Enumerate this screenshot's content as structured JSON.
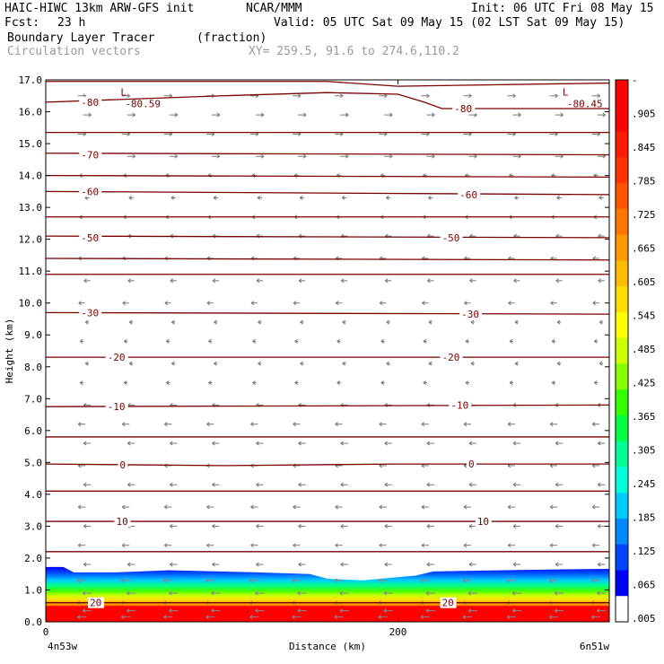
{
  "header": {
    "model": "HAIC-HIWC 13km ARW-GFS init",
    "org": "NCAR/MMM",
    "init": "Init: 06 UTC Fri 08 May 15",
    "fcst_label": "Fcst:",
    "fcst_value": "23 h",
    "valid": "Valid: 05 UTC Sat 09 May 15 (02 LST Sat 09 May 15)",
    "field_name": "Boundary Layer Tracer",
    "field_units": "(fraction)",
    "vector_label": "Circulation vectors",
    "xy_text": "XY= 259.5, 91.6 to 274.6,110.2"
  },
  "chart_data": {
    "type": "heatmap",
    "xlabel": "Distance (km)",
    "ylabel": "Height (km)",
    "xlim": [
      0,
      320
    ],
    "ylim": [
      0,
      17
    ],
    "x_ticks": [
      {
        "value": 0,
        "label": "0"
      },
      {
        "value": 200,
        "label": "200"
      }
    ],
    "y_ticks": [
      "0.0",
      "1.0",
      "2.0",
      "3.0",
      "4.0",
      "5.0",
      "6.0",
      "7.0",
      "8.0",
      "9.0",
      "10.0",
      "11.0",
      "12.0",
      "13.0",
      "14.0",
      "15.0",
      "16.0",
      "17.0"
    ],
    "x_end_labels": {
      "left": "4n53w",
      "right": "6n51w"
    },
    "colorbar": {
      "labels": [
        "-",
        ".905",
        ".845",
        ".785",
        ".725",
        ".665",
        ".605",
        ".545",
        ".485",
        ".425",
        ".365",
        ".305",
        ".245",
        ".185",
        ".125",
        ".065",
        ".005"
      ],
      "colors": [
        "#ff0000",
        "#ff0000",
        "#ff1a00",
        "#ff3300",
        "#ff5500",
        "#ff7700",
        "#ff9900",
        "#ffbb00",
        "#ffdd00",
        "#ffff00",
        "#ccff00",
        "#88ff00",
        "#33ff00",
        "#00ff44",
        "#00ff99",
        "#00ffdd",
        "#00ccff",
        "#0088ff",
        "#0044ff",
        "#0000ff",
        "#ffffff"
      ]
    },
    "tracer_top_km": [
      [
        0,
        1.72
      ],
      [
        10,
        1.72
      ],
      [
        16,
        1.55
      ],
      [
        40,
        1.55
      ],
      [
        70,
        1.62
      ],
      [
        120,
        1.55
      ],
      [
        150,
        1.5
      ],
      [
        160,
        1.35
      ],
      [
        180,
        1.3
      ],
      [
        210,
        1.45
      ],
      [
        220,
        1.58
      ],
      [
        260,
        1.62
      ],
      [
        300,
        1.65
      ],
      [
        320,
        1.66
      ]
    ],
    "tracer_bands_km": [
      {
        "level": ".005",
        "top_offset": 0.0
      },
      {
        "level": ".305",
        "top_offset": 0.25
      },
      {
        "level": ".545",
        "top_offset": 0.45
      },
      {
        "level": ".725",
        "top_offset": 0.6
      },
      {
        "level": ".905",
        "top_offset": 0.8
      }
    ],
    "isotherms": [
      {
        "label": "-80",
        "points": [
          [
            0,
            16.3
          ],
          [
            100,
            16.5
          ],
          [
            160,
            16.6
          ],
          [
            200,
            16.55
          ],
          [
            215,
            16.3
          ],
          [
            225,
            16.1
          ],
          [
            320,
            16.1
          ]
        ],
        "labels_at": [
          [
            20,
            16.3
          ],
          [
            232,
            16.1
          ]
        ]
      },
      {
        "label": "",
        "points": [
          [
            0,
            16.95
          ],
          [
            160,
            16.95
          ],
          [
            200,
            16.8
          ],
          [
            320,
            16.9
          ]
        ],
        "labels_at": []
      },
      {
        "label": "",
        "points": [
          [
            0,
            15.35
          ],
          [
            320,
            15.35
          ]
        ],
        "labels_at": []
      },
      {
        "label": "-70",
        "points": [
          [
            0,
            14.7
          ],
          [
            320,
            14.65
          ]
        ],
        "labels_at": [
          [
            20,
            14.65
          ]
        ]
      },
      {
        "label": "",
        "points": [
          [
            0,
            14.0
          ],
          [
            320,
            13.95
          ]
        ],
        "labels_at": []
      },
      {
        "label": "-60",
        "points": [
          [
            0,
            13.5
          ],
          [
            320,
            13.4
          ]
        ],
        "labels_at": [
          [
            20,
            13.5
          ],
          [
            235,
            13.4
          ]
        ]
      },
      {
        "label": "",
        "points": [
          [
            0,
            12.7
          ],
          [
            320,
            12.7
          ]
        ],
        "labels_at": []
      },
      {
        "label": "-50",
        "points": [
          [
            0,
            12.1
          ],
          [
            320,
            12.05
          ]
        ],
        "labels_at": [
          [
            20,
            12.05
          ],
          [
            225,
            12.05
          ]
        ]
      },
      {
        "label": "",
        "points": [
          [
            0,
            11.4
          ],
          [
            320,
            11.35
          ]
        ],
        "labels_at": []
      },
      {
        "label": "",
        "points": [
          [
            0,
            10.9
          ],
          [
            320,
            10.9
          ]
        ],
        "labels_at": []
      },
      {
        "label": "-30",
        "points": [
          [
            0,
            9.7
          ],
          [
            320,
            9.65
          ]
        ],
        "labels_at": [
          [
            20,
            9.7
          ],
          [
            236,
            9.65
          ]
        ]
      },
      {
        "label": "-20",
        "points": [
          [
            0,
            8.3
          ],
          [
            320,
            8.3
          ]
        ],
        "labels_at": [
          [
            35,
            8.3
          ],
          [
            225,
            8.3
          ]
        ]
      },
      {
        "label": "-10",
        "points": [
          [
            0,
            6.75
          ],
          [
            320,
            6.8
          ]
        ],
        "labels_at": [
          [
            35,
            6.75
          ],
          [
            230,
            6.8
          ]
        ]
      },
      {
        "label": "",
        "points": [
          [
            0,
            5.8
          ],
          [
            320,
            5.8
          ]
        ],
        "labels_at": []
      },
      {
        "label": "0",
        "points": [
          [
            0,
            4.95
          ],
          [
            100,
            4.9
          ],
          [
            200,
            4.95
          ],
          [
            320,
            4.95
          ]
        ],
        "labels_at": [
          [
            42,
            4.92
          ],
          [
            240,
            4.95
          ]
        ]
      },
      {
        "label": "",
        "points": [
          [
            0,
            4.1
          ],
          [
            320,
            4.1
          ]
        ],
        "labels_at": []
      },
      {
        "label": "10",
        "points": [
          [
            0,
            3.15
          ],
          [
            320,
            3.15
          ]
        ],
        "labels_at": [
          [
            40,
            3.15
          ],
          [
            245,
            3.15
          ]
        ]
      },
      {
        "label": "",
        "points": [
          [
            0,
            2.2
          ],
          [
            320,
            2.2
          ]
        ],
        "labels_at": []
      },
      {
        "label": "20",
        "points": [
          [
            0,
            0.6
          ],
          [
            320,
            0.6
          ]
        ],
        "labels_at": [
          [
            25,
            0.6
          ],
          [
            225,
            0.6
          ]
        ]
      }
    ],
    "lows": [
      {
        "marker": "L",
        "value": "-80.59",
        "x": 45,
        "y": 16.45
      },
      {
        "marker": "L",
        "value": "-80.45",
        "x": 296,
        "y": 16.45
      }
    ],
    "vector_rows_km": [
      16.5,
      15.9,
      15.3,
      14.6,
      14.0,
      13.3,
      12.7,
      12.1,
      11.4,
      10.7,
      10.0,
      9.4,
      8.8,
      8.1,
      7.5,
      6.8,
      6.2,
      5.6,
      4.9,
      4.3,
      3.6,
      3.0,
      2.4,
      1.8,
      1.3,
      0.9,
      0.6,
      0.35,
      0.15
    ],
    "vector_cols_km": [
      22,
      47,
      71,
      95,
      120,
      144,
      168,
      193,
      217,
      241,
      266,
      290,
      314
    ]
  }
}
